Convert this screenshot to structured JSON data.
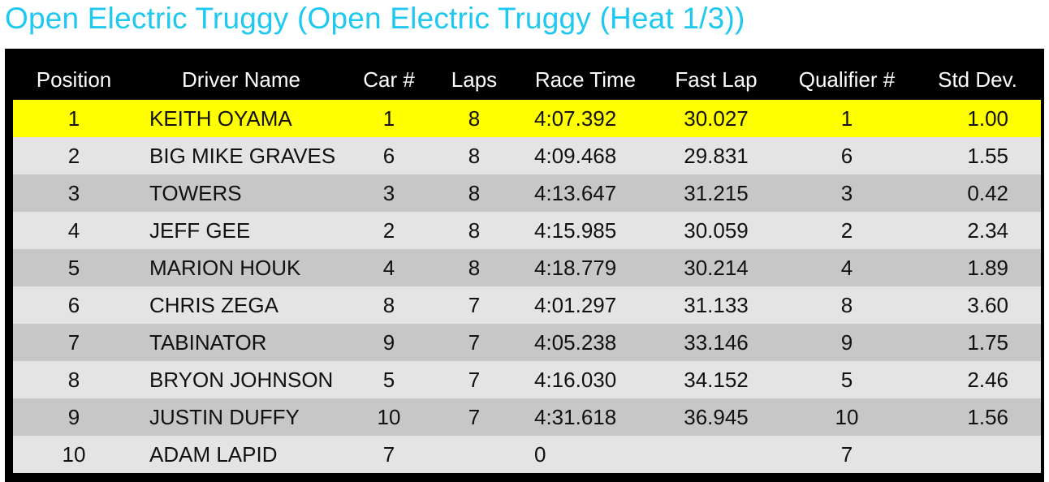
{
  "page": {
    "title": "Open Electric Truggy (Open Electric Truggy (Heat 1/3))"
  },
  "colors": {
    "title": "#1ec8f0",
    "frame": "#000000",
    "winner_row": "#ffff00",
    "row_light": "#e4e4e4",
    "row_dark": "#c7c7c7"
  },
  "table": {
    "headers": [
      "Position",
      "Driver Name",
      "Car #",
      "Laps",
      "Race Time",
      "Fast Lap",
      "Qualifier #",
      "Std Dev."
    ],
    "rows": [
      [
        "1",
        "KEITH OYAMA",
        "1",
        "8",
        "4:07.392",
        "30.027",
        "1",
        "1.00"
      ],
      [
        "2",
        "BIG MIKE GRAVES",
        "6",
        "8",
        "4:09.468",
        "29.831",
        "6",
        "1.55"
      ],
      [
        "3",
        "TOWERS",
        "3",
        "8",
        "4:13.647",
        "31.215",
        "3",
        "0.42"
      ],
      [
        "4",
        "JEFF GEE",
        "2",
        "8",
        "4:15.985",
        "30.059",
        "2",
        "2.34"
      ],
      [
        "5",
        "MARION HOUK",
        "4",
        "8",
        "4:18.779",
        "30.214",
        "4",
        "1.89"
      ],
      [
        "6",
        "CHRIS ZEGA",
        "8",
        "7",
        "4:01.297",
        "31.133",
        "8",
        "3.60"
      ],
      [
        "7",
        "TABINATOR",
        "9",
        "7",
        "4:05.238",
        "33.146",
        "9",
        "1.75"
      ],
      [
        "8",
        "BRYON JOHNSON",
        "5",
        "7",
        "4:16.030",
        "34.152",
        "5",
        "2.46"
      ],
      [
        "9",
        "JUSTIN DUFFY",
        "10",
        "7",
        "4:31.618",
        "36.945",
        "10",
        "1.56"
      ],
      [
        "10",
        "ADAM LAPID",
        "7",
        "",
        "0",
        "",
        "7",
        ""
      ]
    ]
  }
}
